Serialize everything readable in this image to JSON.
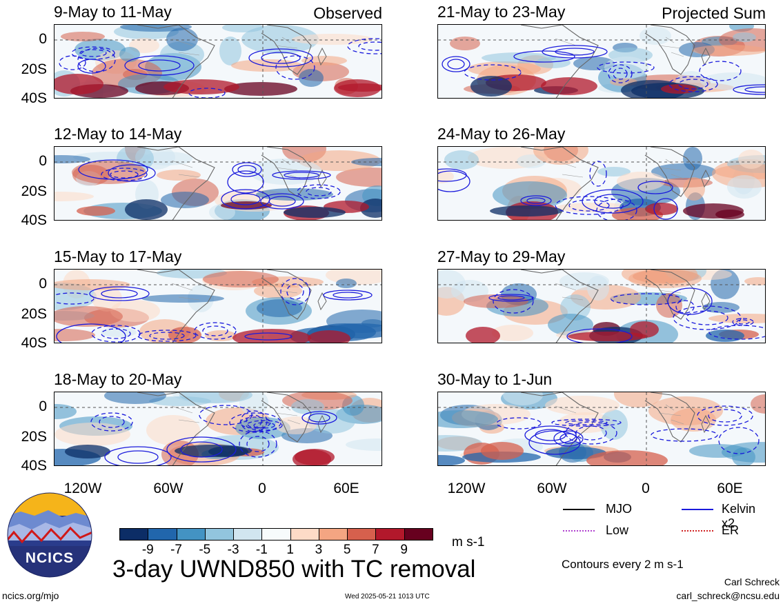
{
  "panels": [
    {
      "title": "9-May to 11-May",
      "tag": "Observed"
    },
    {
      "title": "12-May to 14-May",
      "tag": ""
    },
    {
      "title": "15-May to 17-May",
      "tag": ""
    },
    {
      "title": "18-May to 20-May",
      "tag": ""
    },
    {
      "title": "21-May to 23-May",
      "tag": "Projected Sum"
    },
    {
      "title": "24-May to 26-May",
      "tag": ""
    },
    {
      "title": "27-May to 29-May",
      "tag": ""
    },
    {
      "title": "30-May to 1-Jun",
      "tag": ""
    }
  ],
  "lat_ticks": [
    "0",
    "20S",
    "40S"
  ],
  "lon_ticks": [
    "120W",
    "60W",
    "0",
    "60E"
  ],
  "colorbar": {
    "colors": [
      "#0c2d66",
      "#2166ac",
      "#4393c3",
      "#92c5de",
      "#d1e5f0",
      "#f7fbfc",
      "#fddbc7",
      "#f4a582",
      "#d6604d",
      "#b2182b",
      "#67001f"
    ],
    "labels": [
      "-9",
      "-7",
      "-5",
      "-3",
      "-1",
      "1",
      "3",
      "5",
      "7",
      "9"
    ],
    "units": "m s-1"
  },
  "legend": {
    "items": [
      {
        "label": "MJO",
        "color": "#000000"
      },
      {
        "label": "Kelvin x2",
        "color": "#1a1adc"
      },
      {
        "label": "Low",
        "color": "#b040d0"
      },
      {
        "label": "ER",
        "color": "#d02020"
      }
    ],
    "note": "Contours every 2 m s-1"
  },
  "logo": {
    "text": "NCICS"
  },
  "main_title": "3-day UWND850 with TC removal",
  "footer": {
    "left": "ncics.org/mjo",
    "center": "Wed 2025-05-21 1013 UTC",
    "author": "Carl Schreck",
    "email": "carl_schreck@ncsu.edu"
  }
}
